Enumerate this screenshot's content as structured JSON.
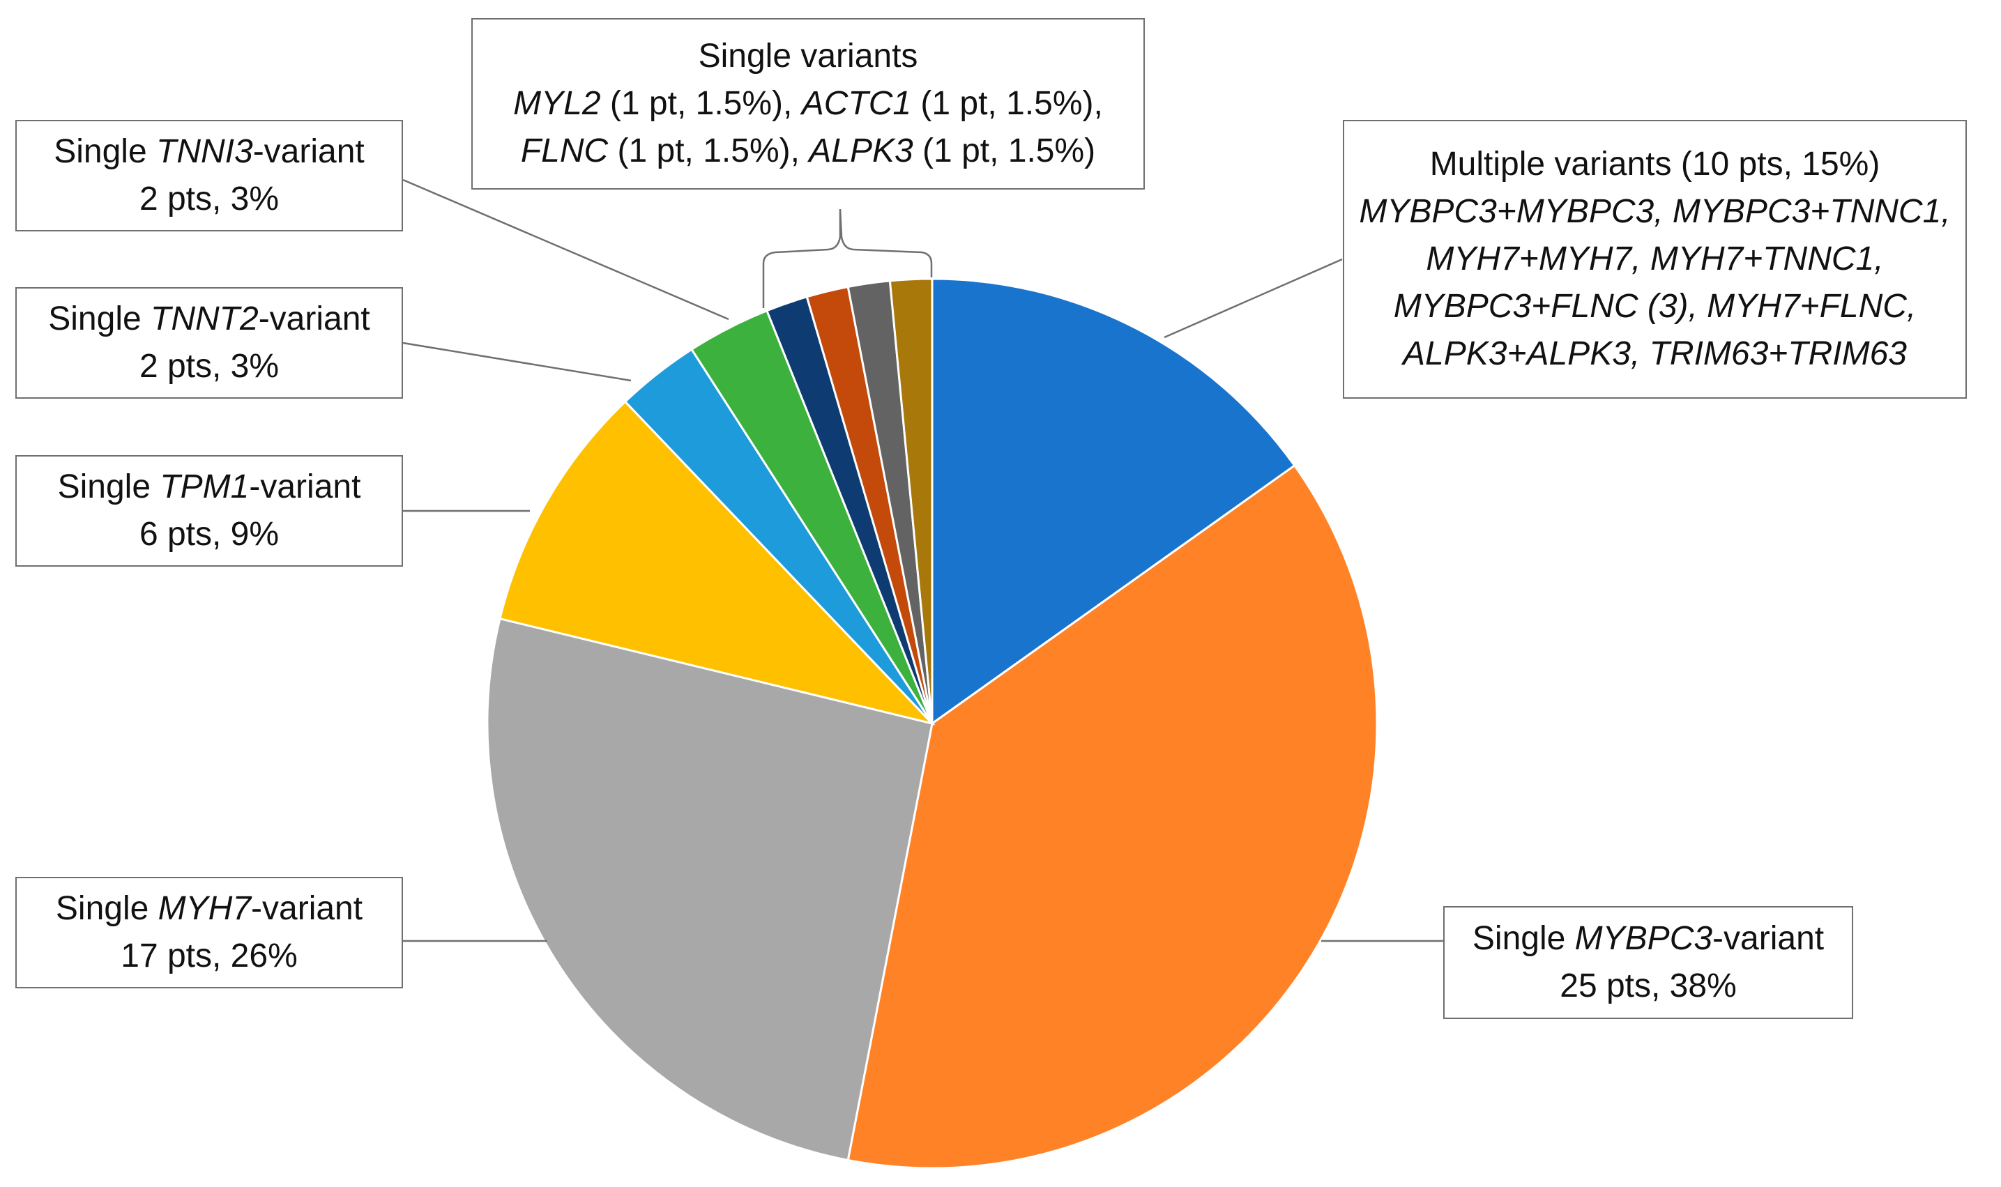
{
  "chart_data": {
    "type": "pie",
    "title": "",
    "slices": [
      {
        "key": "multi",
        "label": "Multiple variants",
        "pts": 10,
        "pct": 15,
        "color": "#1874CD"
      },
      {
        "key": "mybpc3",
        "label": "Single MYBPC3-variant",
        "pts": 25,
        "pct": 38,
        "color": "#FF8227"
      },
      {
        "key": "myh7",
        "label": "Single MYH7-variant",
        "pts": 17,
        "pct": 26,
        "color": "#A8A8A8"
      },
      {
        "key": "tpm1",
        "label": "Single TPM1-variant",
        "pts": 6,
        "pct": 9,
        "color": "#FFC000"
      },
      {
        "key": "tnnt2",
        "label": "Single TNNT2-variant",
        "pts": 2,
        "pct": 3,
        "color": "#1E9BDA"
      },
      {
        "key": "tnni3",
        "label": "Single TNNI3-variant",
        "pts": 2,
        "pct": 3,
        "color": "#3DB13D"
      },
      {
        "key": "myl2",
        "label": "MYL2",
        "pts": 1,
        "pct": 1.5,
        "color": "#0E3B72"
      },
      {
        "key": "actc1",
        "label": "ACTC1",
        "pts": 1,
        "pct": 1.5,
        "color": "#C44A0C"
      },
      {
        "key": "flnc",
        "label": "FLNC",
        "pts": 1,
        "pct": 1.5,
        "color": "#636363"
      },
      {
        "key": "alpk3",
        "label": "ALPK3",
        "pts": 1,
        "pct": 1.5,
        "color": "#A8780A"
      }
    ]
  },
  "labels": {
    "single_variants": {
      "title": "Single variants",
      "myl2_gene": "MYL2",
      "myl2_text": " (1 pt, 1.5%), ",
      "actc1_gene": "ACTC1",
      "actc1_text": " (1 pt, 1.5%),",
      "flnc_gene": "FLNC",
      "flnc_text": " (1 pt, 1.5%), ",
      "alpk3_gene": "ALPK3",
      "alpk3_text": " (1 pt, 1.5%)"
    },
    "multiple": {
      "title": "Multiple variants (10 pts, 15%)",
      "lines": [
        "MYBPC3+MYBPC3, MYBPC3+TNNC1,",
        "MYH7+MYH7, MYH7+TNNC1,",
        "MYBPC3+FLNC (3), MYH7+FLNC,",
        "ALPK3+ALPK3, TRIM63+TRIM63"
      ]
    },
    "tnni3": {
      "prefix": "Single ",
      "gene": "TNNI3",
      "suffix": "-variant",
      "stats": "2 pts, 3%"
    },
    "tnnt2": {
      "prefix": "Single ",
      "gene": "TNNT2",
      "suffix": "-variant",
      "stats": "2 pts, 3%"
    },
    "tpm1": {
      "prefix": "Single ",
      "gene": "TPM1",
      "suffix": "-variant",
      "stats": "6 pts, 9%"
    },
    "myh7": {
      "prefix": "Single ",
      "gene": "MYH7",
      "suffix": "-variant",
      "stats": "17 pts, 26%"
    },
    "mybpc3": {
      "prefix": "Single ",
      "gene": "MYBPC3",
      "suffix": "-variant",
      "stats": "25 pts, 38%"
    }
  }
}
